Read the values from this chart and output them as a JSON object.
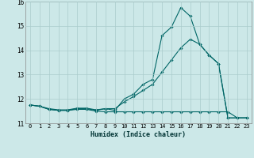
{
  "xlabel": "Humidex (Indice chaleur)",
  "xlim": [
    -0.5,
    23.5
  ],
  "ylim": [
    11,
    16
  ],
  "yticks": [
    11,
    12,
    13,
    14,
    15,
    16
  ],
  "xticks": [
    0,
    1,
    2,
    3,
    4,
    5,
    6,
    7,
    8,
    9,
    10,
    11,
    12,
    13,
    14,
    15,
    16,
    17,
    18,
    19,
    20,
    21,
    22,
    23
  ],
  "background_color": "#cce8e8",
  "grid_color": "#aacccc",
  "line_color": "#006666",
  "series1_x": [
    0,
    1,
    2,
    3,
    4,
    5,
    6,
    7,
    8,
    9,
    10,
    11,
    12,
    13,
    14,
    15,
    16,
    17,
    18,
    19,
    20,
    21,
    22,
    23
  ],
  "series1_y": [
    11.75,
    11.7,
    11.57,
    11.53,
    11.53,
    11.57,
    11.57,
    11.5,
    11.47,
    11.47,
    11.47,
    11.47,
    11.47,
    11.47,
    11.47,
    11.47,
    11.47,
    11.47,
    11.47,
    11.47,
    11.47,
    11.47,
    11.22,
    11.22
  ],
  "series2_x": [
    0,
    1,
    2,
    3,
    4,
    5,
    6,
    7,
    8,
    9,
    10,
    11,
    12,
    13,
    14,
    15,
    16,
    17,
    18,
    19,
    20,
    21,
    22,
    23
  ],
  "series2_y": [
    11.75,
    11.7,
    11.57,
    11.53,
    11.53,
    11.6,
    11.6,
    11.53,
    11.6,
    11.53,
    12.0,
    12.2,
    12.6,
    12.8,
    14.6,
    14.95,
    15.75,
    15.4,
    14.25,
    13.8,
    13.45,
    11.22,
    11.22,
    11.22
  ],
  "series3_x": [
    0,
    1,
    2,
    3,
    4,
    5,
    6,
    7,
    8,
    9,
    10,
    11,
    12,
    13,
    14,
    15,
    16,
    17,
    18,
    19,
    20,
    21,
    22,
    23
  ],
  "series3_y": [
    11.75,
    11.7,
    11.6,
    11.55,
    11.55,
    11.62,
    11.62,
    11.55,
    11.6,
    11.6,
    11.88,
    12.1,
    12.35,
    12.6,
    13.1,
    13.6,
    14.1,
    14.45,
    14.25,
    13.8,
    13.45,
    11.22,
    11.22,
    11.22
  ]
}
